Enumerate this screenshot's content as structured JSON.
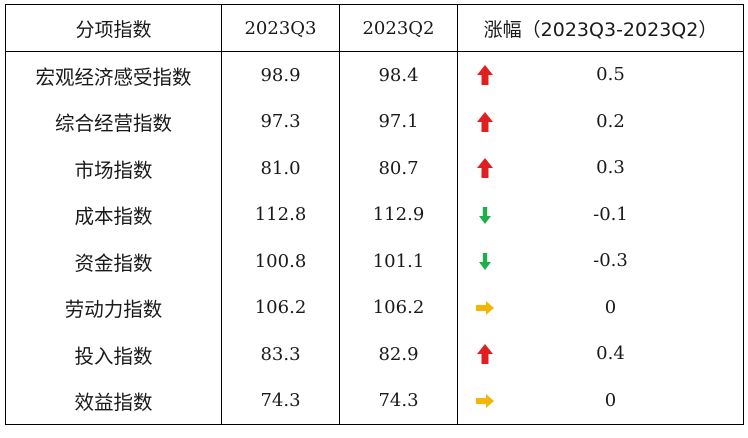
{
  "columns": [
    "分项指数",
    "2023Q3",
    "2023Q2",
    "涨幅（2023Q3-2023Q2）"
  ],
  "rows": [
    {
      "name": "宏观经济感受指数",
      "q3": "98.9",
      "q2": "98.4",
      "change": "0.5",
      "trend": "up"
    },
    {
      "name": "综合经营指数",
      "q3": "97.3",
      "q2": "97.1",
      "change": "0.2",
      "trend": "up"
    },
    {
      "name": "市场指数",
      "q3": "81.0",
      "q2": "80.7",
      "change": "0.3",
      "trend": "up"
    },
    {
      "name": "成本指数",
      "q3": "112.8",
      "q2": "112.9",
      "change": "-0.1",
      "trend": "down"
    },
    {
      "name": "资金指数",
      "q3": "100.8",
      "q2": "101.1",
      "change": "-0.3",
      "trend": "down"
    },
    {
      "name": "劳动力指数",
      "q3": "106.2",
      "q2": "106.2",
      "change": "0",
      "trend": "flat"
    },
    {
      "name": "投入指数",
      "q3": "83.3",
      "q2": "82.9",
      "change": "0.4",
      "trend": "up"
    },
    {
      "name": "效益指数",
      "q3": "74.3",
      "q2": "74.3",
      "change": "0",
      "trend": "flat"
    }
  ],
  "trend_icons": {
    "up": {
      "icon": "arrow-up-icon",
      "color": "#e02020"
    },
    "down": {
      "icon": "arrow-down-icon",
      "color": "#1fae4b"
    },
    "flat": {
      "icon": "arrow-right-icon",
      "color": "#f2b705"
    }
  }
}
